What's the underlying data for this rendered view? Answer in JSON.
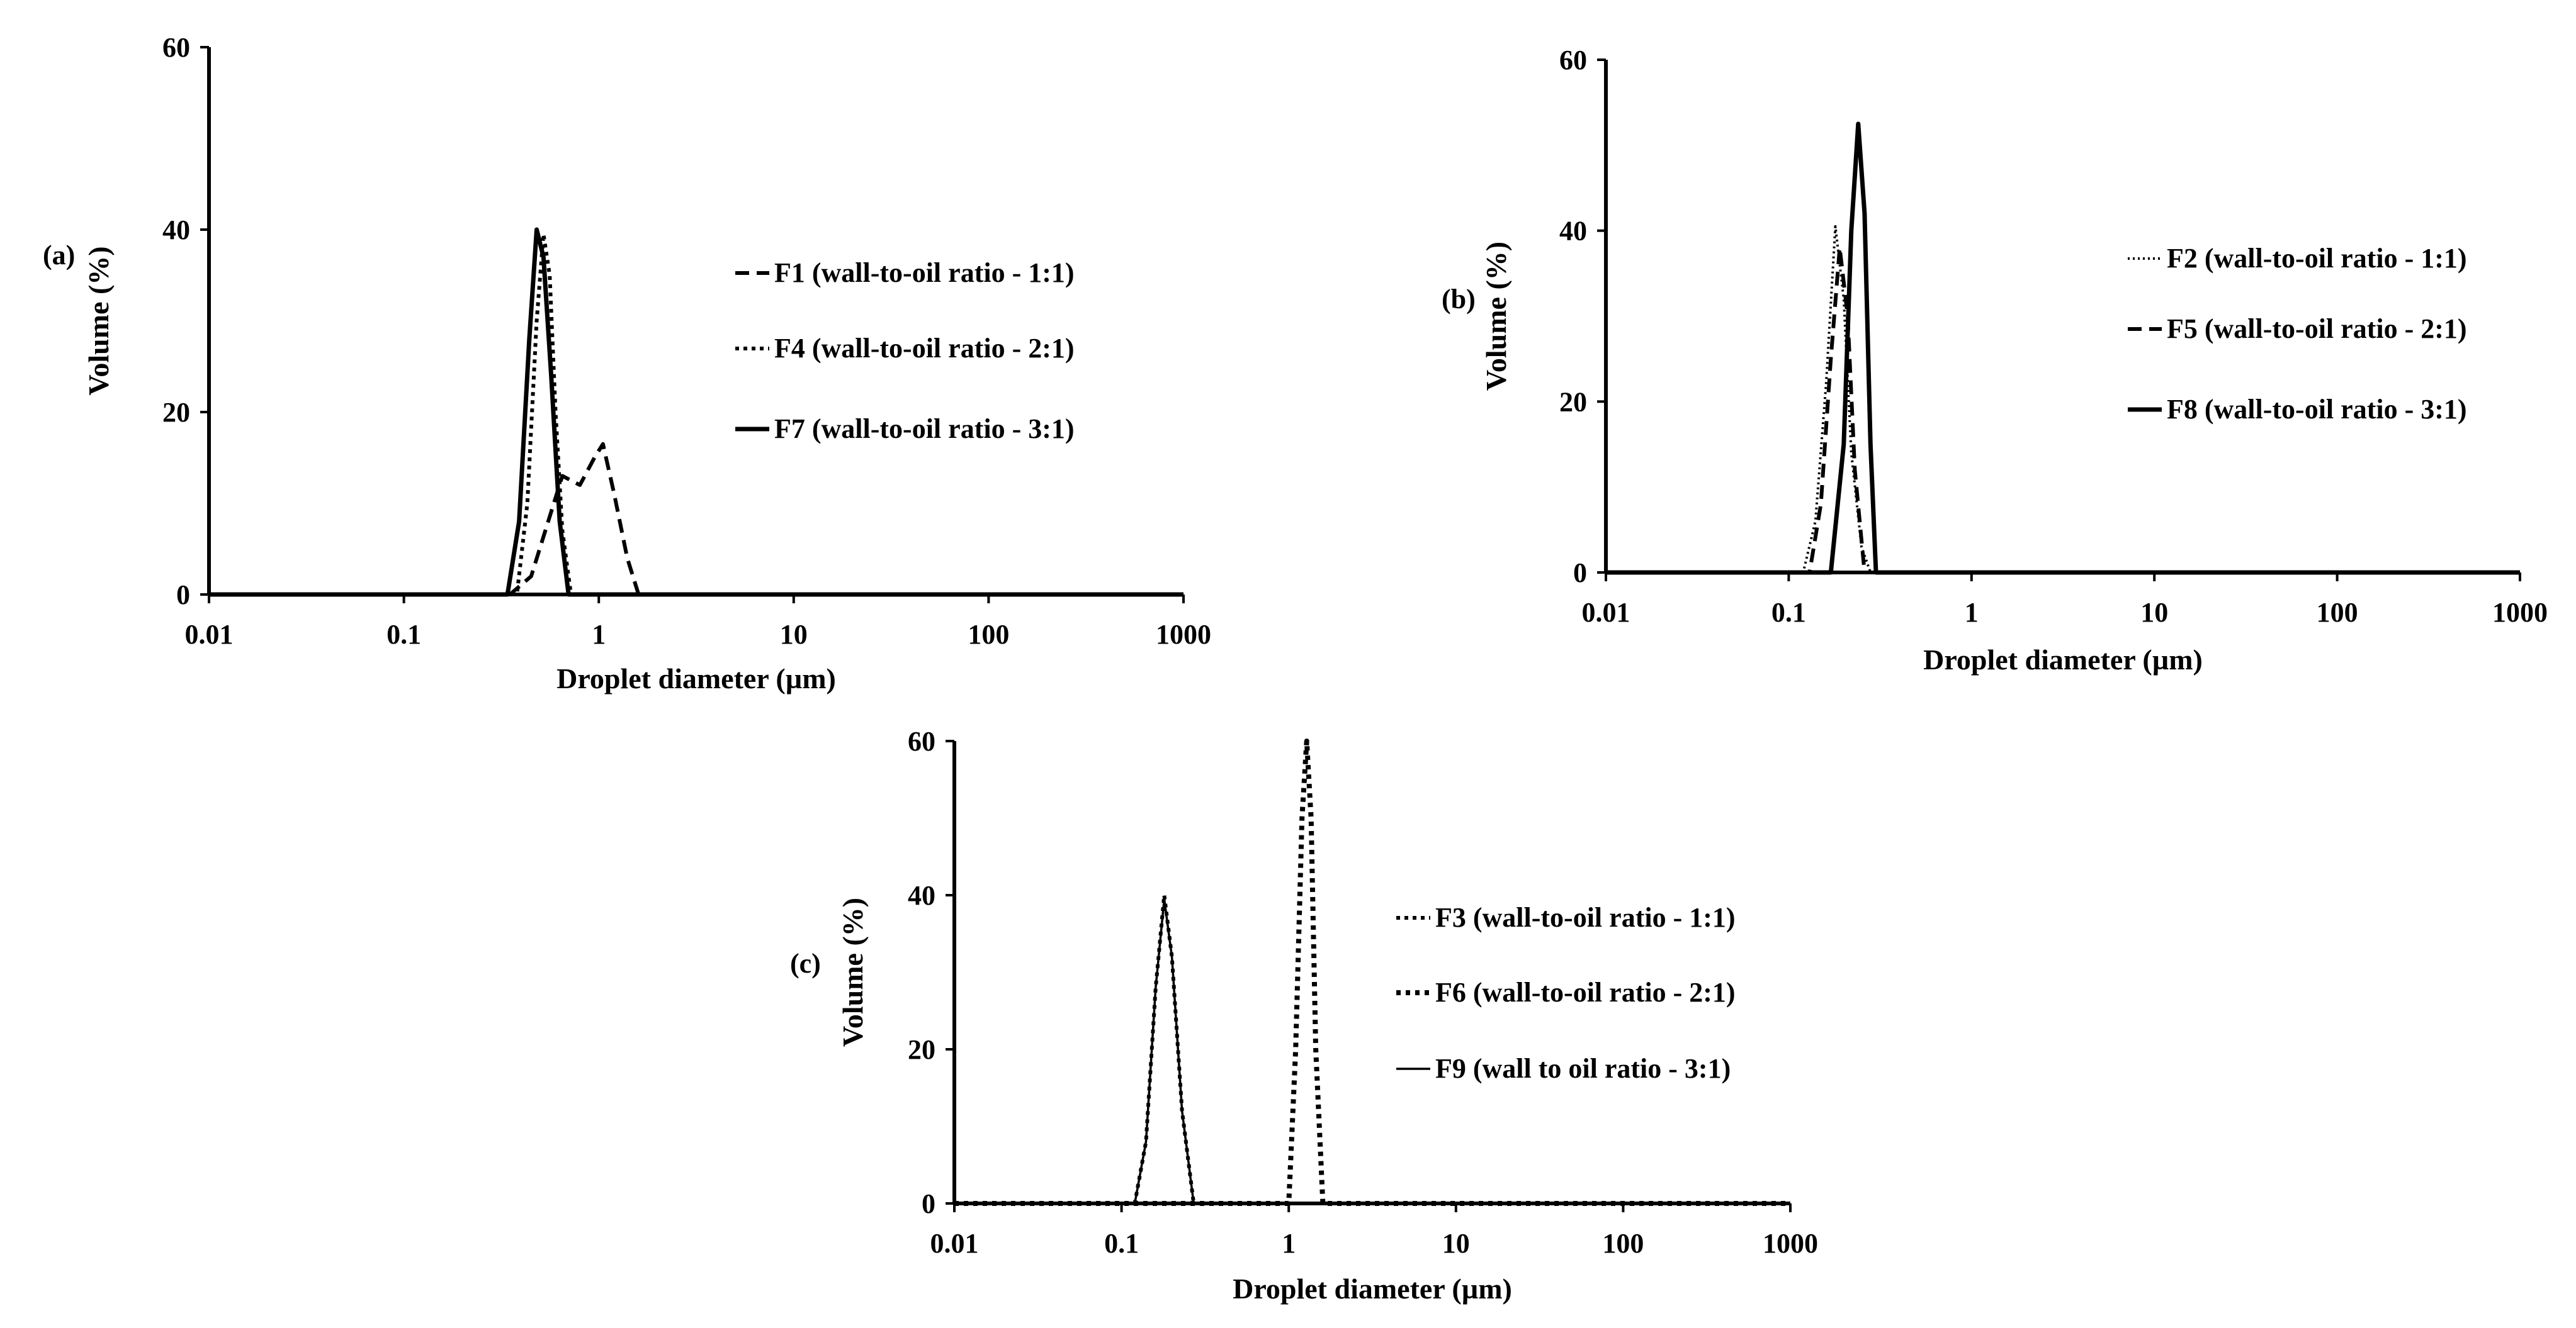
{
  "chart_data": [
    {
      "type": "line",
      "panel_label": "(a)",
      "xlabel": "Droplet diameter (µm)",
      "ylabel": "Volume (%)",
      "x_scale": "log",
      "xlim": [
        0.01,
        1000
      ],
      "ylim": [
        0,
        60
      ],
      "x_ticks": [
        "0.01",
        "0.1",
        "1",
        "10",
        "100",
        "1000"
      ],
      "y_ticks": [
        "0",
        "20",
        "40",
        "60"
      ],
      "grid": false,
      "legend_position": "right",
      "series": [
        {
          "name": "F1 (wall-to-oil ratio - 1:1)",
          "style": "dashed",
          "x": [
            0.01,
            0.35,
            0.45,
            0.55,
            0.65,
            0.8,
            0.95,
            1.05,
            1.2,
            1.4,
            1.6,
            1000
          ],
          "y": [
            0,
            0,
            2,
            8,
            13,
            12,
            15,
            16.5,
            11,
            4,
            0,
            0
          ]
        },
        {
          "name": "F4 (wall-to-oil ratio - 2:1)",
          "style": "dotted",
          "x": [
            0.01,
            0.38,
            0.43,
            0.48,
            0.52,
            0.56,
            0.6,
            0.65,
            0.72,
            1000
          ],
          "y": [
            0,
            0,
            10,
            30,
            39.5,
            35,
            20,
            7,
            0,
            0
          ]
        },
        {
          "name": "F7 (wall-to-oil ratio - 3:1)",
          "style": "solid",
          "x": [
            0.01,
            0.34,
            0.39,
            0.44,
            0.48,
            0.52,
            0.57,
            0.63,
            0.7,
            1000
          ],
          "y": [
            0,
            0,
            8,
            28,
            40,
            37,
            24,
            8,
            0,
            0
          ]
        }
      ]
    },
    {
      "type": "line",
      "panel_label": "(b)",
      "xlabel": "Droplet diameter (µm)",
      "ylabel": "Volume (%)",
      "x_scale": "log",
      "xlim": [
        0.01,
        1000
      ],
      "ylim": [
        0,
        60
      ],
      "x_ticks": [
        "0.01",
        "0.1",
        "1",
        "10",
        "100",
        "1000"
      ],
      "y_ticks": [
        "0",
        "20",
        "40",
        "60"
      ],
      "grid": false,
      "legend_position": "right",
      "series": [
        {
          "name": "F2 (wall-to-oil ratio - 1:1)",
          "style": "fine-dotted",
          "x": [
            0.01,
            0.12,
            0.14,
            0.16,
            0.18,
            0.2,
            0.22,
            0.25,
            0.28,
            1000
          ],
          "y": [
            0,
            0,
            6,
            22,
            40.5,
            32,
            14,
            3,
            0,
            0
          ]
        },
        {
          "name": "F5 (wall-to-oil ratio - 2:1)",
          "style": "dashed",
          "x": [
            0.01,
            0.13,
            0.15,
            0.17,
            0.19,
            0.21,
            0.23,
            0.26,
            1000
          ],
          "y": [
            0,
            0,
            8,
            25,
            38,
            30,
            12,
            0,
            0
          ]
        },
        {
          "name": "F8 (wall-to-oil ratio - 3:1)",
          "style": "solid",
          "x": [
            0.01,
            0.17,
            0.2,
            0.22,
            0.24,
            0.26,
            0.28,
            0.3,
            1000
          ],
          "y": [
            0,
            0,
            15,
            40,
            52.5,
            42,
            15,
            0,
            0
          ]
        }
      ]
    },
    {
      "type": "line",
      "panel_label": "(c)",
      "xlabel": "Droplet diameter (µm)",
      "ylabel": "Volume (%)",
      "x_scale": "log",
      "xlim": [
        0.01,
        1000
      ],
      "ylim": [
        0,
        60
      ],
      "x_ticks": [
        "0.01",
        "0.1",
        "1",
        "10",
        "100",
        "1000"
      ],
      "y_ticks": [
        "0",
        "20",
        "40",
        "60"
      ],
      "grid": false,
      "legend_position": "right",
      "series": [
        {
          "name": "F3 (wall-to-oil ratio - 1:1)",
          "style": "dotted",
          "x": [
            0.01,
            0.12,
            0.14,
            0.16,
            0.18,
            0.2,
            0.23,
            0.27,
            1000
          ],
          "y": [
            0,
            0,
            8,
            28,
            40,
            32,
            12,
            0,
            0
          ]
        },
        {
          "name": "F6 (wall-to-oil ratio - 2:1)",
          "style": "heavy-dotted",
          "x": [
            0.01,
            1.0,
            1.1,
            1.2,
            1.28,
            1.36,
            1.45,
            1.6,
            1000
          ],
          "y": [
            0,
            0,
            20,
            50,
            60,
            50,
            20,
            0,
            0
          ]
        },
        {
          "name": "F9 (wall to oil ratio - 3:1)",
          "style": "thin-solid",
          "x": [
            0.01,
            0.12,
            0.14,
            0.16,
            0.18,
            0.2,
            0.23,
            0.27,
            1000
          ],
          "y": [
            0,
            0,
            8,
            28,
            39.5,
            32,
            12,
            0,
            0
          ]
        }
      ]
    }
  ]
}
